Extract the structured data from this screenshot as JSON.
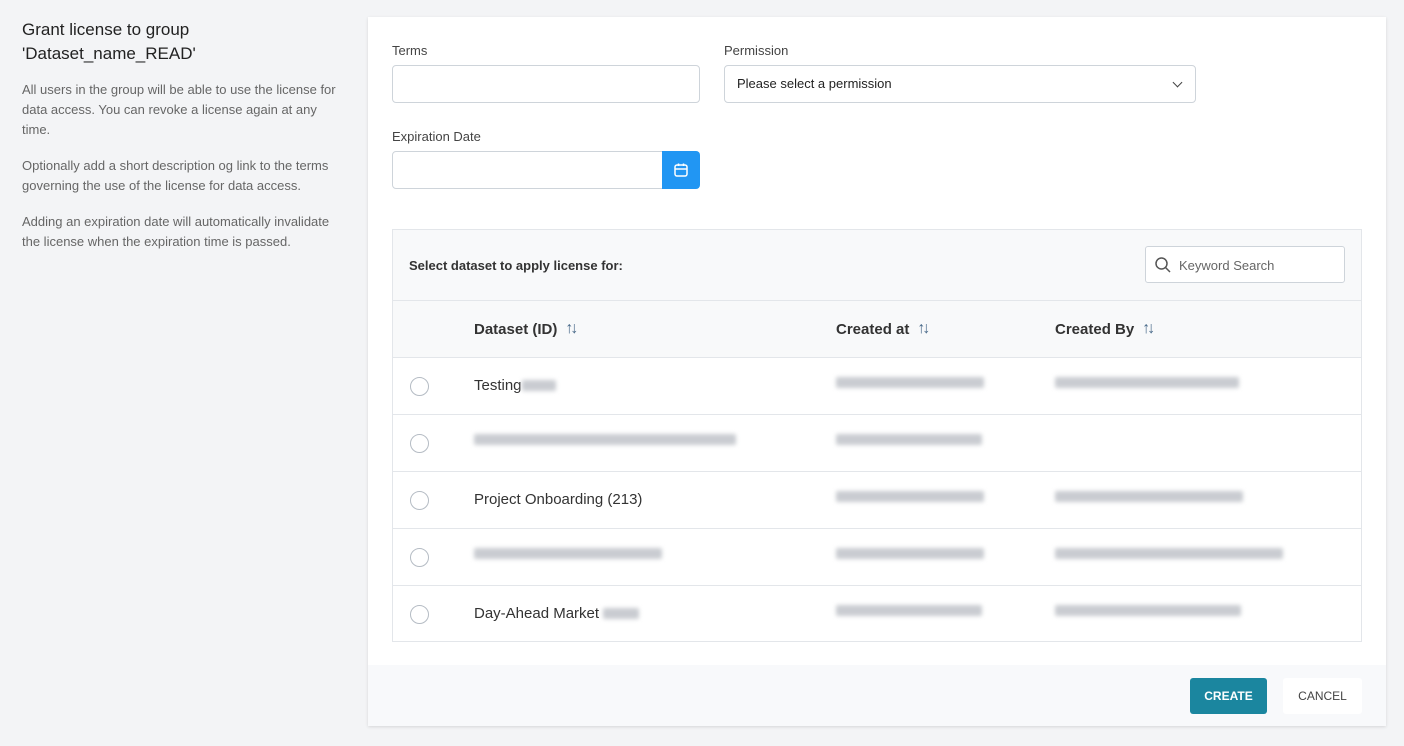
{
  "sidebar": {
    "title": "Grant license to group 'Dataset_name_READ'",
    "paragraphs": [
      "All users in the group will be able to use the license for data access. You can revoke a license again at any time.",
      "Optionally add a short description og link to the terms governing the use of the license for data access.",
      "Adding an expiration date will automatically invalidate the license when the expiration time is passed."
    ]
  },
  "form": {
    "terms_label": "Terms",
    "terms_value": "",
    "permission_label": "Permission",
    "permission_value": "Please select a permission",
    "expiration_label": "Expiration Date",
    "expiration_value": ""
  },
  "table": {
    "title": "Select dataset to apply license for:",
    "search_placeholder": "Keyword Search",
    "columns": [
      "Dataset (ID)",
      "Created at",
      "Created By"
    ],
    "rows": [
      {
        "dataset": "Testing",
        "created_at": "",
        "created_by": ""
      },
      {
        "dataset": "",
        "created_at": "",
        "created_by": ""
      },
      {
        "dataset": "Project Onboarding (213)",
        "created_at": "",
        "created_by": ""
      },
      {
        "dataset": "",
        "created_at": "",
        "created_by": ""
      },
      {
        "dataset": "Day-Ahead Market",
        "created_at": "",
        "created_by": ""
      }
    ]
  },
  "footer": {
    "create_label": "CREATE",
    "cancel_label": "CANCEL"
  },
  "colors": {
    "primary": "#1b869f",
    "calendar_button": "#2196f3"
  }
}
